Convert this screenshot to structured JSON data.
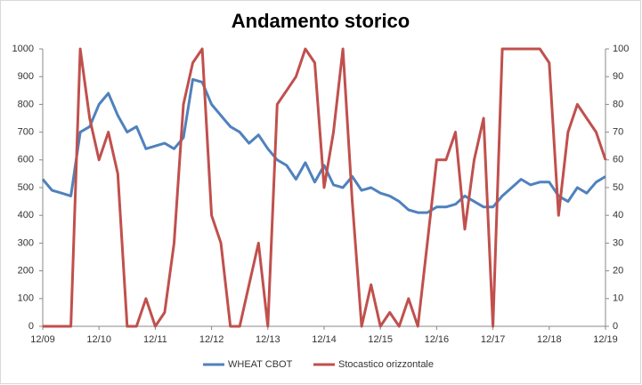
{
  "chart_data": {
    "type": "line",
    "title": "Andamento storico",
    "categories": [
      "12/09",
      null,
      null,
      null,
      null,
      null,
      "12/10",
      null,
      null,
      null,
      null,
      null,
      "12/11",
      null,
      null,
      null,
      null,
      null,
      "12/12",
      null,
      null,
      null,
      null,
      null,
      "12/13",
      null,
      null,
      null,
      null,
      null,
      "12/14",
      null,
      null,
      null,
      null,
      null,
      "12/15",
      null,
      null,
      null,
      null,
      null,
      "12/16",
      null,
      null,
      null,
      null,
      null,
      "12/17",
      null,
      null,
      null,
      null,
      null,
      "12/18",
      null,
      null,
      null,
      null,
      null,
      "12/19"
    ],
    "series": [
      {
        "name": "WHEAT CBOT",
        "color": "#4f81bd",
        "values": [
          530,
          490,
          480,
          470,
          700,
          720,
          800,
          840,
          760,
          700,
          720,
          640,
          650,
          660,
          640,
          680,
          890,
          880,
          800,
          760,
          720,
          700,
          660,
          690,
          640,
          600,
          580,
          530,
          590,
          520,
          580,
          510,
          500,
          540,
          490,
          500,
          480,
          470,
          450,
          420,
          410,
          410,
          430,
          430,
          440,
          470,
          450,
          430,
          430,
          470,
          500,
          530,
          510,
          520,
          520,
          470,
          450,
          500,
          480,
          520,
          540
        ]
      },
      {
        "name": "Stocastico orizzontale",
        "color": "#c0504d",
        "axis": "y2",
        "values": [
          0,
          0,
          0,
          0,
          100,
          75,
          60,
          70,
          55,
          0,
          0,
          10,
          0,
          5,
          30,
          80,
          95,
          100,
          40,
          30,
          0,
          0,
          15,
          30,
          0,
          80,
          85,
          90,
          100,
          95,
          50,
          70,
          100,
          45,
          0,
          15,
          0,
          5,
          0,
          10,
          0,
          30,
          60,
          60,
          70,
          35,
          60,
          75,
          0,
          100,
          100,
          100,
          100,
          100,
          95,
          40,
          70,
          80,
          75,
          70,
          60
        ]
      }
    ],
    "ylim": [
      0,
      1000
    ],
    "yticks": [
      0,
      100,
      200,
      300,
      400,
      500,
      600,
      700,
      800,
      900,
      1000
    ],
    "y2lim": [
      0,
      100
    ],
    "y2ticks": [
      0,
      10,
      20,
      30,
      40,
      50,
      60,
      70,
      80,
      90,
      100
    ],
    "legend": "bottom"
  }
}
